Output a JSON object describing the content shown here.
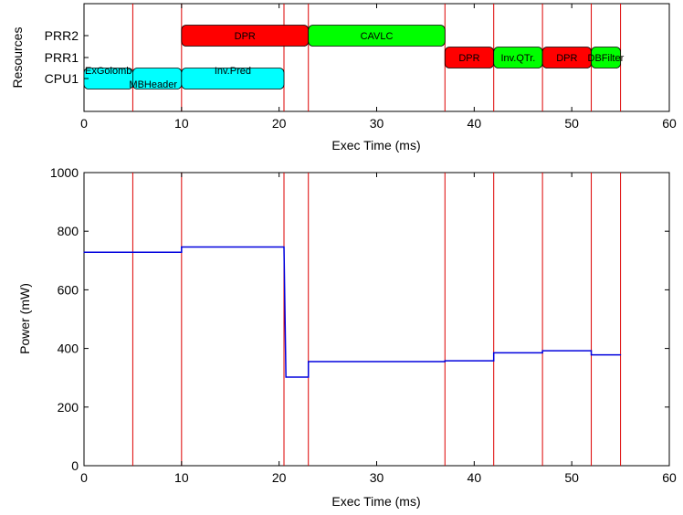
{
  "chart_data": [
    {
      "type": "gantt",
      "xlabel": "Exec Time (ms)",
      "ylabel": "Resources",
      "xlim": [
        0,
        60
      ],
      "xticks": [
        0,
        10,
        20,
        30,
        40,
        50,
        60
      ],
      "rows": [
        "PRR2",
        "PRR1",
        "CPU1"
      ],
      "tasks": [
        {
          "label": "DPR",
          "row": "PRR2",
          "start": 10,
          "end": 23,
          "color": "#ff0000"
        },
        {
          "label": "CAVLC",
          "row": "PRR2",
          "start": 23,
          "end": 37,
          "color": "#00ff00"
        },
        {
          "label": "DPR",
          "row": "PRR1",
          "start": 37,
          "end": 42,
          "color": "#ff0000"
        },
        {
          "label": "Inv.QTr.",
          "row": "PRR1",
          "start": 42,
          "end": 47,
          "color": "#00ff00"
        },
        {
          "label": "DPR",
          "row": "PRR1",
          "start": 47,
          "end": 52,
          "color": "#ff0000"
        },
        {
          "label": "DBFilter",
          "row": "PRR1",
          "start": 52,
          "end": 55,
          "color": "#00ff00"
        },
        {
          "label": "ExGolomb",
          "row": "CPU1",
          "start": 0,
          "end": 5,
          "color": "#00ffff"
        },
        {
          "label": "MBHeader",
          "row": "CPU1",
          "start": 5,
          "end": 10,
          "color": "#00ffff"
        },
        {
          "label": "Inv.Pred",
          "row": "CPU1",
          "start": 10,
          "end": 20.5,
          "color": "#00ffff"
        }
      ],
      "markers": [
        5,
        10,
        20.5,
        23,
        37,
        42,
        47,
        52,
        55
      ],
      "marker_color": "#dd0000"
    },
    {
      "type": "line",
      "xlabel": "Exec Time (ms)",
      "ylabel": "Power (mW)",
      "xlim": [
        0,
        60
      ],
      "ylim": [
        0,
        1000
      ],
      "xticks": [
        0,
        10,
        20,
        30,
        40,
        50,
        60
      ],
      "yticks": [
        0,
        200,
        400,
        600,
        800,
        1000
      ],
      "line_color": "#0000dd",
      "series": [
        {
          "x": [
            0,
            10,
            10,
            20.5,
            20.7,
            23,
            23,
            37,
            37,
            42,
            42,
            47,
            47,
            52,
            52,
            55
          ],
          "y": [
            728,
            728,
            746,
            746,
            302,
            302,
            355,
            355,
            358,
            358,
            385,
            385,
            392,
            392,
            378,
            378
          ]
        }
      ],
      "markers": [
        5,
        10,
        20.5,
        23,
        37,
        42,
        47,
        52,
        55
      ],
      "marker_color": "#dd0000"
    }
  ]
}
